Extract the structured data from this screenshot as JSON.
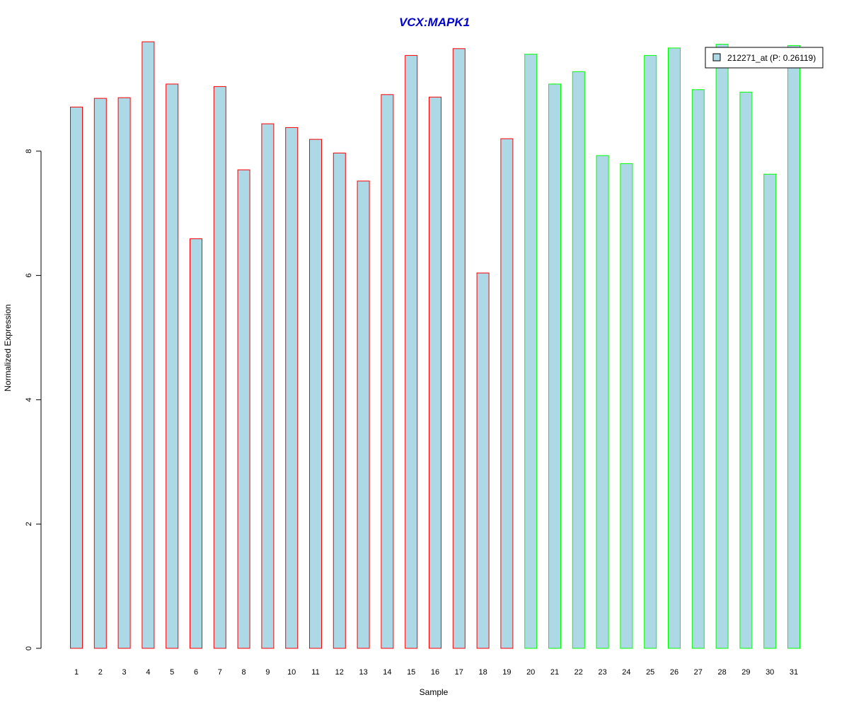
{
  "colors": {
    "title": "#0000CC",
    "bar_fill": "#ADD8E6",
    "group1_border": "#FF0000",
    "group2_border": "#00FF00",
    "axis": "#000000"
  },
  "chart_data": {
    "type": "bar",
    "title": "VCX:MAPK1",
    "xlabel": "Sample",
    "ylabel": "Normalized Expression",
    "ylim": [
      0,
      9.8
    ],
    "yticks": [
      0,
      2,
      4,
      6,
      8
    ],
    "grid": false,
    "legend_position": "top-right",
    "categories": [
      "1",
      "2",
      "3",
      "4",
      "5",
      "6",
      "7",
      "8",
      "9",
      "10",
      "11",
      "12",
      "13",
      "14",
      "15",
      "16",
      "17",
      "18",
      "19",
      "20",
      "21",
      "22",
      "23",
      "24",
      "25",
      "26",
      "27",
      "28",
      "29",
      "30",
      "31"
    ],
    "series": [
      {
        "name": "212271_at (P: 0.26119)",
        "values": [
          8.71,
          8.85,
          8.86,
          9.76,
          9.08,
          6.59,
          9.04,
          7.7,
          8.44,
          8.38,
          8.19,
          7.97,
          7.52,
          8.91,
          9.54,
          8.87,
          9.65,
          6.04,
          8.2,
          9.56,
          9.08,
          9.28,
          7.93,
          7.8,
          9.54,
          9.66,
          8.99,
          9.72,
          8.95,
          7.63,
          9.7
        ]
      }
    ],
    "groups": [
      1,
      1,
      1,
      1,
      1,
      1,
      1,
      1,
      1,
      1,
      1,
      1,
      1,
      1,
      1,
      1,
      1,
      1,
      1,
      2,
      2,
      2,
      2,
      2,
      2,
      2,
      2,
      2,
      2,
      2,
      2
    ]
  }
}
